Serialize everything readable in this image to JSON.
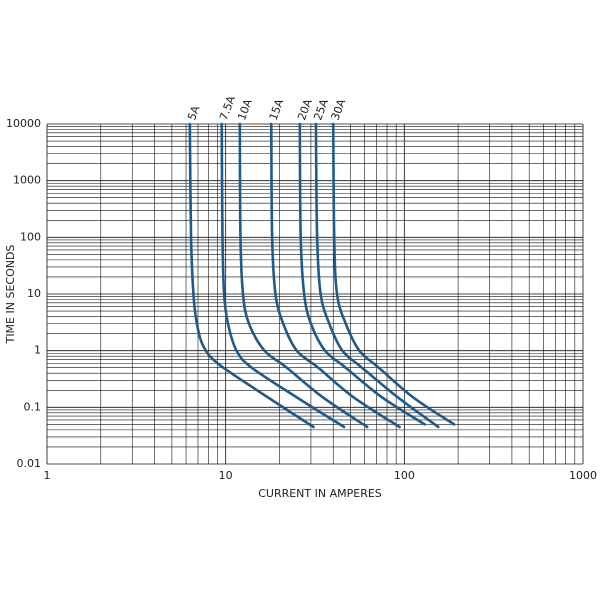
{
  "chart_data": {
    "type": "line",
    "x_label": "CURRENT IN AMPERES",
    "y_label": "TIME IN SECONDS",
    "log_x": true,
    "log_y": true,
    "grid": true,
    "xlim": [
      1,
      1000
    ],
    "xticks": [
      1,
      10,
      100,
      1000
    ],
    "ylim": [
      0.01,
      10000
    ],
    "yticks": [
      0.01,
      0.1,
      1,
      10,
      100,
      1000,
      10000
    ],
    "series": [
      {
        "name": "5A",
        "color": "#1f5a8a",
        "x": [
          6.3,
          6.4,
          6.6,
          6.9,
          7.5,
          9,
          15,
          31
        ],
        "values": [
          10000,
          100,
          10,
          3,
          1.2,
          0.6,
          0.2,
          0.045
        ]
      },
      {
        "name": "7.5A",
        "color": "#1f5a8a",
        "x": [
          9.5,
          9.6,
          9.8,
          10.3,
          11.5,
          14,
          25,
          46
        ],
        "values": [
          10000,
          100,
          10,
          3,
          1,
          0.5,
          0.15,
          0.045
        ]
      },
      {
        "name": "10A",
        "color": "#1f5a8a",
        "x": [
          12,
          12.1,
          12.5,
          13.5,
          16.5,
          22,
          35,
          62
        ],
        "values": [
          10000,
          100,
          10,
          3,
          1,
          0.5,
          0.15,
          0.045
        ]
      },
      {
        "name": "15A",
        "color": "#1f5a8a",
        "x": [
          18,
          18.2,
          19,
          21,
          25,
          33,
          52,
          94
        ],
        "values": [
          10000,
          100,
          10,
          3,
          1,
          0.5,
          0.15,
          0.045
        ]
      },
      {
        "name": "20A",
        "color": "#1f5a8a",
        "x": [
          26,
          26.3,
          27.5,
          30,
          36,
          47,
          75,
          130
        ],
        "values": [
          10000,
          100,
          10,
          3,
          1,
          0.5,
          0.15,
          0.05
        ]
      },
      {
        "name": "25A",
        "color": "#1f5a8a",
        "x": [
          32,
          32.5,
          34,
          38,
          45,
          58,
          92,
          155
        ],
        "values": [
          10000,
          100,
          10,
          3,
          1,
          0.5,
          0.15,
          0.045
        ]
      },
      {
        "name": "30A",
        "color": "#1f5a8a",
        "x": [
          40,
          40.5,
          42,
          47,
          56,
          72,
          112,
          190
        ],
        "values": [
          10000,
          100,
          10,
          3,
          1,
          0.5,
          0.15,
          0.05
        ]
      }
    ]
  }
}
